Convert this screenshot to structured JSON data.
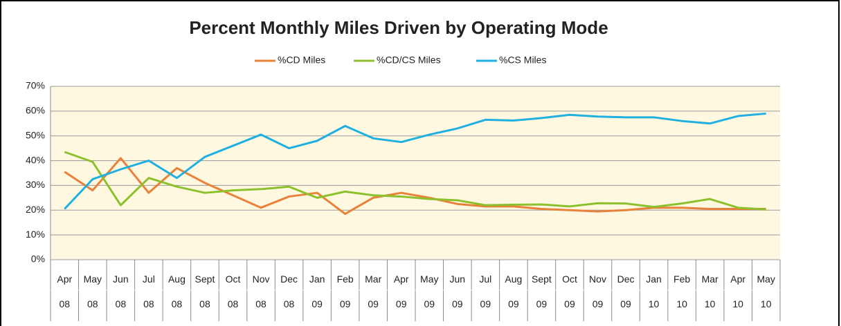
{
  "chart_data": {
    "type": "line",
    "title": "Percent Monthly Miles Driven by Operating Mode",
    "categories": [
      "Apr 08",
      "May 08",
      "Jun 08",
      "Jul 08",
      "Aug 08",
      "Sept 08",
      "Oct 08",
      "Nov 08",
      "Dec 08",
      "Jan 09",
      "Feb 09",
      "Mar 09",
      "Apr 09",
      "May 09",
      "Jun 09",
      "Jul 09",
      "Aug 09",
      "Sept 09",
      "Oct 09",
      "Nov 09",
      "Dec 09",
      "Jan 10",
      "Feb 10",
      "Mar 10",
      "Apr 10",
      "May 10"
    ],
    "series": [
      {
        "name": "%CD Miles",
        "color": "#e8823a",
        "values": [
          35.5,
          28,
          41,
          27,
          37,
          31,
          26,
          21,
          25.5,
          27,
          18.5,
          25,
          27,
          25,
          22.5,
          21.5,
          21.5,
          20.5,
          20,
          19.5,
          20,
          21,
          21,
          20.5,
          20.5,
          20.5
        ]
      },
      {
        "name": "%CD/CS Miles",
        "color": "#8cc02c",
        "values": [
          43.5,
          39.5,
          22,
          33,
          29.5,
          27,
          28,
          28.5,
          29.5,
          25,
          27.5,
          26,
          25.5,
          24.5,
          24,
          22,
          22.2,
          22.3,
          21.5,
          22.8,
          22.7,
          21.3,
          22.7,
          24.5,
          21,
          20.3
        ]
      },
      {
        "name": "%CS Miles",
        "color": "#1fb0e0",
        "values": [
          20.5,
          32.5,
          36.5,
          40,
          33,
          41.5,
          46,
          50.5,
          45,
          48,
          54,
          49,
          47.5,
          50.5,
          53,
          56.5,
          56.2,
          57.2,
          58.5,
          57.8,
          57.5,
          57.5,
          56,
          55,
          58,
          59
        ]
      }
    ],
    "ylim": [
      0,
      70
    ],
    "yticks": [
      {
        "value": 0,
        "label": "0%"
      },
      {
        "value": 10,
        "label": "10%"
      },
      {
        "value": 20,
        "label": "20%"
      },
      {
        "value": 30,
        "label": "30%"
      },
      {
        "value": 40,
        "label": "40%"
      },
      {
        "value": 50,
        "label": "50%"
      },
      {
        "value": 60,
        "label": "60%"
      },
      {
        "value": 70,
        "label": "70%"
      }
    ],
    "grid": true,
    "legend": "top"
  }
}
